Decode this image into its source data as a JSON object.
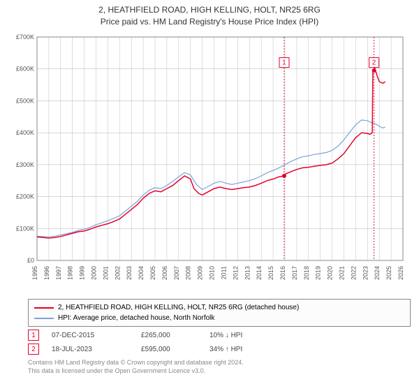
{
  "title_line1": "2, HEATHFIELD ROAD, HIGH KELLING, HOLT, NR25 6RG",
  "title_line2": "Price paid vs. HM Land Registry's House Price Index (HPI)",
  "chart": {
    "type": "line",
    "background_color": "#ffffff",
    "plot_background": "#ffffff",
    "grid_color": "#bfbfbf",
    "axis_color": "#888888",
    "xlim": [
      1995,
      2026
    ],
    "ylim": [
      0,
      700000
    ],
    "ytick_step": 100000,
    "ytick_labels": [
      "£0",
      "£100K",
      "£200K",
      "£300K",
      "£400K",
      "£500K",
      "£600K",
      "£700K"
    ],
    "xtick_step": 1,
    "xtick_labels": [
      "1995",
      "1996",
      "1997",
      "1998",
      "1999",
      "2000",
      "2001",
      "2002",
      "2003",
      "2004",
      "2005",
      "2006",
      "2007",
      "2008",
      "2009",
      "2010",
      "2011",
      "2012",
      "2013",
      "2014",
      "2015",
      "2016",
      "2017",
      "2018",
      "2019",
      "2020",
      "2021",
      "2022",
      "2023",
      "2024",
      "2025",
      "2026"
    ],
    "tick_font_size": 9,
    "tick_color": "#555555",
    "series": [
      {
        "name": "2, HEATHFIELD ROAD, HIGH KELLING, HOLT, NR25 6RG (detached house)",
        "color": "#e4002b",
        "line_width": 1.5,
        "data": [
          [
            1995.0,
            74000
          ],
          [
            1995.5,
            72000
          ],
          [
            1996.0,
            70000
          ],
          [
            1996.5,
            72000
          ],
          [
            1997.0,
            75000
          ],
          [
            1997.5,
            80000
          ],
          [
            1998.0,
            85000
          ],
          [
            1998.5,
            90000
          ],
          [
            1999.0,
            92000
          ],
          [
            1999.5,
            98000
          ],
          [
            2000.0,
            105000
          ],
          [
            2000.5,
            110000
          ],
          [
            2001.0,
            115000
          ],
          [
            2001.5,
            122000
          ],
          [
            2002.0,
            130000
          ],
          [
            2002.5,
            145000
          ],
          [
            2003.0,
            160000
          ],
          [
            2003.5,
            175000
          ],
          [
            2004.0,
            195000
          ],
          [
            2004.5,
            210000
          ],
          [
            2005.0,
            218000
          ],
          [
            2005.5,
            215000
          ],
          [
            2006.0,
            225000
          ],
          [
            2006.5,
            235000
          ],
          [
            2007.0,
            250000
          ],
          [
            2007.5,
            265000
          ],
          [
            2008.0,
            255000
          ],
          [
            2008.3,
            225000
          ],
          [
            2008.7,
            210000
          ],
          [
            2009.0,
            205000
          ],
          [
            2009.5,
            215000
          ],
          [
            2010.0,
            225000
          ],
          [
            2010.5,
            230000
          ],
          [
            2011.0,
            225000
          ],
          [
            2011.5,
            222000
          ],
          [
            2012.0,
            225000
          ],
          [
            2012.5,
            228000
          ],
          [
            2013.0,
            230000
          ],
          [
            2013.5,
            235000
          ],
          [
            2014.0,
            242000
          ],
          [
            2014.5,
            250000
          ],
          [
            2015.0,
            255000
          ],
          [
            2015.5,
            262000
          ],
          [
            2015.94,
            265000
          ],
          [
            2016.0,
            270000
          ],
          [
            2016.5,
            278000
          ],
          [
            2017.0,
            285000
          ],
          [
            2017.5,
            290000
          ],
          [
            2018.0,
            292000
          ],
          [
            2018.5,
            295000
          ],
          [
            2019.0,
            298000
          ],
          [
            2019.5,
            300000
          ],
          [
            2020.0,
            305000
          ],
          [
            2020.5,
            318000
          ],
          [
            2021.0,
            335000
          ],
          [
            2021.5,
            360000
          ],
          [
            2022.0,
            385000
          ],
          [
            2022.5,
            400000
          ],
          [
            2023.0,
            398000
          ],
          [
            2023.2,
            395000
          ],
          [
            2023.4,
            400000
          ],
          [
            2023.45,
            590000
          ],
          [
            2023.55,
            595000
          ],
          [
            2023.6,
            605000
          ],
          [
            2023.8,
            580000
          ],
          [
            2024.0,
            560000
          ],
          [
            2024.3,
            555000
          ],
          [
            2024.5,
            560000
          ]
        ]
      },
      {
        "name": "HPI: Average price, detached house, North Norfolk",
        "color": "#7aa4d8",
        "line_width": 1.2,
        "data": [
          [
            1995.0,
            76000
          ],
          [
            1995.5,
            75000
          ],
          [
            1996.0,
            74000
          ],
          [
            1996.5,
            76000
          ],
          [
            1997.0,
            80000
          ],
          [
            1997.5,
            84000
          ],
          [
            1998.0,
            88000
          ],
          [
            1998.5,
            94000
          ],
          [
            1999.0,
            98000
          ],
          [
            1999.5,
            104000
          ],
          [
            2000.0,
            112000
          ],
          [
            2000.5,
            118000
          ],
          [
            2001.0,
            125000
          ],
          [
            2001.5,
            132000
          ],
          [
            2002.0,
            140000
          ],
          [
            2002.5,
            155000
          ],
          [
            2003.0,
            170000
          ],
          [
            2003.5,
            185000
          ],
          [
            2004.0,
            205000
          ],
          [
            2004.5,
            220000
          ],
          [
            2005.0,
            228000
          ],
          [
            2005.5,
            225000
          ],
          [
            2006.0,
            235000
          ],
          [
            2006.5,
            248000
          ],
          [
            2007.0,
            262000
          ],
          [
            2007.5,
            275000
          ],
          [
            2008.0,
            268000
          ],
          [
            2008.5,
            238000
          ],
          [
            2009.0,
            222000
          ],
          [
            2009.5,
            232000
          ],
          [
            2010.0,
            242000
          ],
          [
            2010.5,
            248000
          ],
          [
            2011.0,
            242000
          ],
          [
            2011.5,
            238000
          ],
          [
            2012.0,
            242000
          ],
          [
            2012.5,
            246000
          ],
          [
            2013.0,
            250000
          ],
          [
            2013.5,
            256000
          ],
          [
            2014.0,
            265000
          ],
          [
            2014.5,
            275000
          ],
          [
            2015.0,
            282000
          ],
          [
            2015.5,
            290000
          ],
          [
            2016.0,
            300000
          ],
          [
            2016.5,
            310000
          ],
          [
            2017.0,
            318000
          ],
          [
            2017.5,
            325000
          ],
          [
            2018.0,
            328000
          ],
          [
            2018.5,
            332000
          ],
          [
            2019.0,
            335000
          ],
          [
            2019.5,
            338000
          ],
          [
            2020.0,
            345000
          ],
          [
            2020.5,
            358000
          ],
          [
            2021.0,
            378000
          ],
          [
            2021.5,
            402000
          ],
          [
            2022.0,
            425000
          ],
          [
            2022.5,
            440000
          ],
          [
            2023.0,
            438000
          ],
          [
            2023.3,
            432000
          ],
          [
            2023.55,
            430000
          ],
          [
            2023.8,
            425000
          ],
          [
            2024.0,
            420000
          ],
          [
            2024.3,
            415000
          ],
          [
            2024.5,
            418000
          ]
        ]
      }
    ],
    "sale_markers": [
      {
        "n": "1",
        "x": 2015.94,
        "y": 265000,
        "color": "#e4002b",
        "label_y": 620000
      },
      {
        "n": "2",
        "x": 2023.55,
        "y": 595000,
        "color": "#e4002b",
        "label_y": 620000
      }
    ]
  },
  "legend": {
    "series1_color": "#e4002b",
    "series1_label": "2, HEATHFIELD ROAD, HIGH KELLING, HOLT, NR25 6RG (detached house)",
    "series2_color": "#7aa4d8",
    "series2_label": "HPI: Average price, detached house, North Norfolk"
  },
  "sales": [
    {
      "marker": "1",
      "marker_color": "#e4002b",
      "date": "07-DEC-2015",
      "price": "£265,000",
      "compare": "10% ↓ HPI"
    },
    {
      "marker": "2",
      "marker_color": "#e4002b",
      "date": "18-JUL-2023",
      "price": "£595,000",
      "compare": "34% ↑ HPI"
    }
  ],
  "attribution_line1": "Contains HM Land Registry data © Crown copyright and database right 2024.",
  "attribution_line2": "This data is licensed under the Open Government Licence v3.0."
}
